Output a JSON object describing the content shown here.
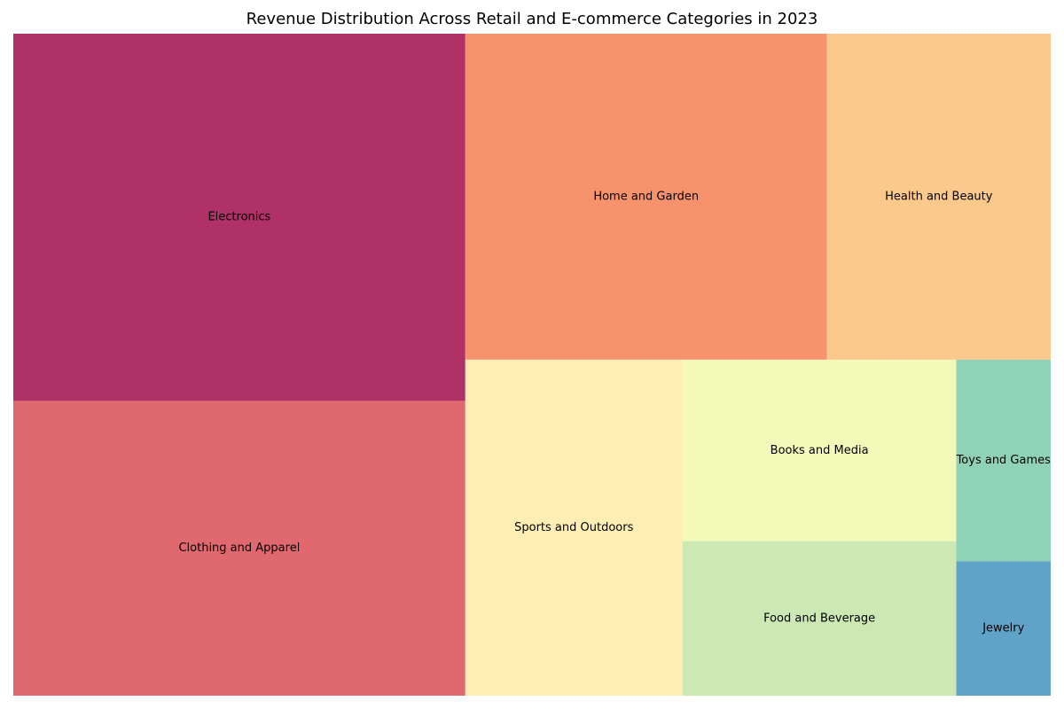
{
  "chart_data": {
    "type": "treemap",
    "title": "Revenue Distribution Across Retail and E-commerce Categories in 2023",
    "categories": [
      "Electronics",
      "Clothing and Apparel",
      "Home and Garden",
      "Health and Beauty",
      "Sports and Outdoors",
      "Books and Media",
      "Food and Beverage",
      "Toys and Games",
      "Jewelry"
    ],
    "values": [
      31.4,
      25.2,
      22.3,
      13.8,
      13.8,
      9.4,
      8.0,
      3.6,
      2.4
    ],
    "colors": [
      "#b03166",
      "#e06970",
      "#f6936d",
      "#fbc98b",
      "#feeeb3",
      "#f2f9b9",
      "#cce9b3",
      "#90d2b7",
      "#60a3c9"
    ],
    "grid": false,
    "legend": "none"
  }
}
